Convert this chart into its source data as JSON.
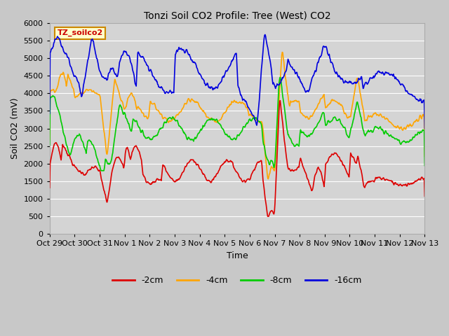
{
  "title": "Tonzi Soil CO2 Profile: Tree (West) CO2",
  "ylabel": "Soil CO2 (mV)",
  "xlabel": "Time",
  "watermark": "TZ_soilco2",
  "ylim": [
    0,
    6000
  ],
  "yticks": [
    0,
    500,
    1000,
    1500,
    2000,
    2500,
    3000,
    3500,
    4000,
    4500,
    5000,
    5500,
    6000
  ],
  "xtick_labels": [
    "Oct 29",
    "Oct 30",
    "Oct 31",
    "Nov 1",
    "Nov 2",
    "Nov 3",
    "Nov 4",
    "Nov 5",
    "Nov 6",
    "Nov 7",
    "Nov 8",
    "Nov 9",
    "Nov 10",
    "Nov 11",
    "Nov 12",
    "Nov 13"
  ],
  "colors": {
    "2cm": "#dd0000",
    "4cm": "#ffa500",
    "8cm": "#00cc00",
    "16cm": "#0000dd"
  },
  "legend_labels": [
    "-2cm",
    "-4cm",
    "-8cm",
    "-16cm"
  ],
  "fig_bg_color": "#c8c8c8",
  "plot_bg_color": "#d4d4d4",
  "grid_color": "#ffffff",
  "title_color": "#333333",
  "watermark_text_color": "#cc0000",
  "watermark_bg": "#ffffcc",
  "watermark_edge": "#cc8800"
}
